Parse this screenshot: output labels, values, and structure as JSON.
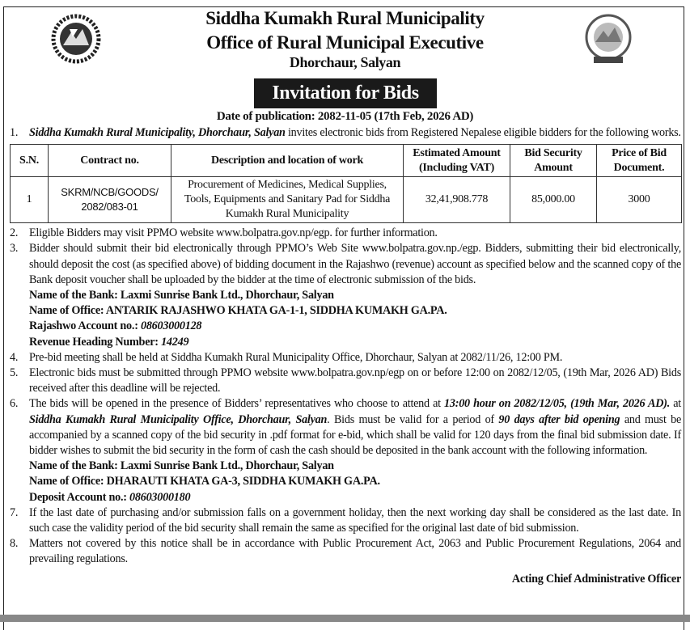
{
  "header": {
    "line1": "Siddha Kumakh Rural Municipality",
    "line2": "Office of Rural Municipal Executive",
    "line3": "Dhorchaur, Salyan",
    "banner": "Invitation for Bids",
    "publication": "Date of publication: 2082-11-05 (17th Feb, 2026 AD)"
  },
  "items": [
    {
      "num": "1.",
      "runs": [
        [
          "Siddha Kumakh Rural Municipality, Dhorchaur, Salyan",
          "bi"
        ],
        [
          " invites electronic bids from Registered Nepalese eligible bidders for the following works.",
          ""
        ]
      ]
    }
  ],
  "table": {
    "headers": [
      "S.N.",
      "Contract no.",
      "Description and location of work",
      "Estimated Amount (Including VAT)",
      "Bid Security Amount",
      "Price of Bid Document."
    ],
    "rows": [
      {
        "sn": "1",
        "contract": "SKRM/NCB/GOODS/ 2082/083-01",
        "description": "Procurement of Medicines,  Medical Supplies, Tools, Equipments and Sanitary Pad for Siddha Kumakh Rural Municipality",
        "estimated": "32,41,908.778",
        "security": "85,000.00",
        "price": "3000"
      }
    ]
  },
  "items_after": [
    {
      "num": "2.",
      "runs": [
        [
          "Eligible Bidders may visit PPMO website www.bolpatra.gov.np/egp. for further information.",
          ""
        ]
      ]
    },
    {
      "num": "3.",
      "runs": [
        [
          "Bidder should submit their bid electronically through PPMO’s Web Site www.bolpatra.gov.np./egp. Bidders, submitting their bid electronically, should deposit the cost (as  specified  above) of bidding document in the Rajashwo (revenue) account as specified  below and the scanned copy of the Bank deposit  voucher shall be uploaded by the bidder at the time of electronic submission of the bids.",
          ""
        ]
      ],
      "info": [
        [
          [
            "Name of the Bank: Laxmi Sunrise Bank Ltd., Dhorchaur, Salyan",
            "b"
          ]
        ],
        [
          [
            "Name of Office: ANTARIK RAJASHWO KHATA GA-1-1, SIDDHA KUMAKH GA.PA.",
            "b"
          ]
        ],
        [
          [
            "Rajashwo Account no.: ",
            "b"
          ],
          [
            "08603000128",
            "bi"
          ]
        ],
        [
          [
            "Revenue Heading Number: ",
            "b"
          ],
          [
            "14249",
            "bi"
          ]
        ]
      ]
    },
    {
      "num": "4.",
      "runs": [
        [
          "Pre-bid meeting shall be held at Siddha Kumakh Rural Municipality Office, Dhorchaur, Salyan at 2082/11/26, 12:00 PM.",
          ""
        ]
      ]
    },
    {
      "num": "5.",
      "runs": [
        [
          "Electronic bids must be submitted through PPMO website www.bolpatra.gov.np/egp on or before 12:00 on 2082/12/05, (19th Mar, 2026 AD) Bids received after this deadline will be rejected.",
          ""
        ]
      ]
    },
    {
      "num": "6.",
      "runs": [
        [
          "The bids will be opened in the presence of Bidders’ representatives who choose to attend at ",
          ""
        ],
        [
          "13:00 hour on 2082/12/05, (19th Mar, 2026 AD).",
          "bi"
        ],
        [
          " at ",
          ""
        ],
        [
          "Siddha Kumakh Rural Municipality Office, Dhorchaur, Salyan",
          "bi"
        ],
        [
          ". Bids must be valid for a period of ",
          ""
        ],
        [
          "90 days after bid opening",
          "bi"
        ],
        [
          " and must be accompanied by a scanned copy of the bid security in .pdf format for e-bid, which shall be valid for 120 days from the final bid submission date. If bidder wishes to submit the bid security in the form of cash the cash should be deposited in the bank account with the following information.",
          ""
        ]
      ],
      "info": [
        [
          [
            "Name of the Bank: Laxmi Sunrise Bank Ltd., Dhorchaur, Salyan",
            "b"
          ]
        ],
        [
          [
            "Name of Office: DHARAUTI KHATA GA-3, SIDDHA KUMAKH GA.PA.",
            "b"
          ]
        ],
        [
          [
            "Deposit Account no.: ",
            "b"
          ],
          [
            "08603000180",
            "bi"
          ]
        ]
      ]
    },
    {
      "num": "7.",
      "runs": [
        [
          "If the last date of purchasing and/or submission falls on a government holiday, then the next working day shall be considered as the last date. In such case the validity period of the bid security shall remain the same as specified for the original last date of bid submission.",
          ""
        ]
      ]
    },
    {
      "num": "8.",
      "runs": [
        [
          "Matters not covered by this notice shall be in accordance with Public Procurement Act, 2063 and Public Procurement Regulations, 2064 and prevailing regulations.",
          ""
        ]
      ]
    }
  ],
  "signature": "Acting Chief Administrative Officer",
  "logos": {
    "left": "nepal-government-emblem",
    "right": "municipality-seal"
  }
}
